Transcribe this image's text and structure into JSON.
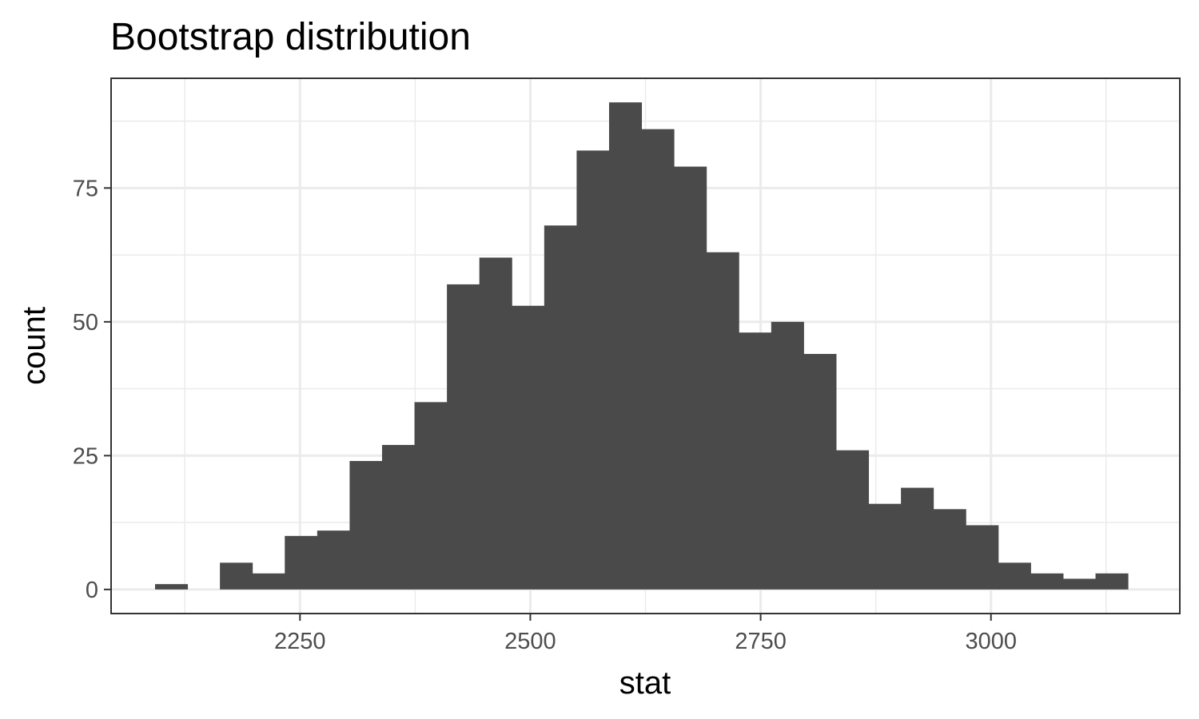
{
  "chart_data": {
    "type": "bar",
    "title": "Bootstrap distribution",
    "xlabel": "stat",
    "ylabel": "count",
    "xlim": [
      2045,
      3205
    ],
    "ylim": [
      -4.5,
      95.5
    ],
    "x_ticks": [
      2250,
      2500,
      2750,
      3000
    ],
    "x_tick_labels": [
      "2250",
      "2500",
      "2750",
      "3000"
    ],
    "y_ticks": [
      0,
      25,
      50,
      75
    ],
    "y_tick_labels": [
      "0",
      "25",
      "50",
      "75"
    ],
    "grid": true,
    "bin_width": 35.2,
    "bin_starts": [
      2092.7,
      2127.9,
      2163.1,
      2198.3,
      2233.5,
      2268.7,
      2303.9,
      2339.1,
      2374.3,
      2409.5,
      2444.7,
      2479.9,
      2515.1,
      2550.3,
      2585.5,
      2620.7,
      2655.9,
      2691.1,
      2726.3,
      2761.5,
      2796.7,
      2831.9,
      2867.1,
      2902.3,
      2937.5,
      2972.7,
      3007.9,
      3043.1,
      3078.3,
      3113.5
    ],
    "values": [
      1,
      0,
      5,
      3,
      10,
      11,
      24,
      27,
      35,
      57,
      62,
      53,
      68,
      82,
      91,
      86,
      79,
      63,
      48,
      50,
      44,
      26,
      16,
      19,
      15,
      12,
      5,
      3,
      2,
      3
    ]
  },
  "colors": {
    "bar": "#4a4a4a",
    "panel_border": "#333333",
    "grid": "#ebebeb",
    "tick_label": "#4d4d4d"
  }
}
